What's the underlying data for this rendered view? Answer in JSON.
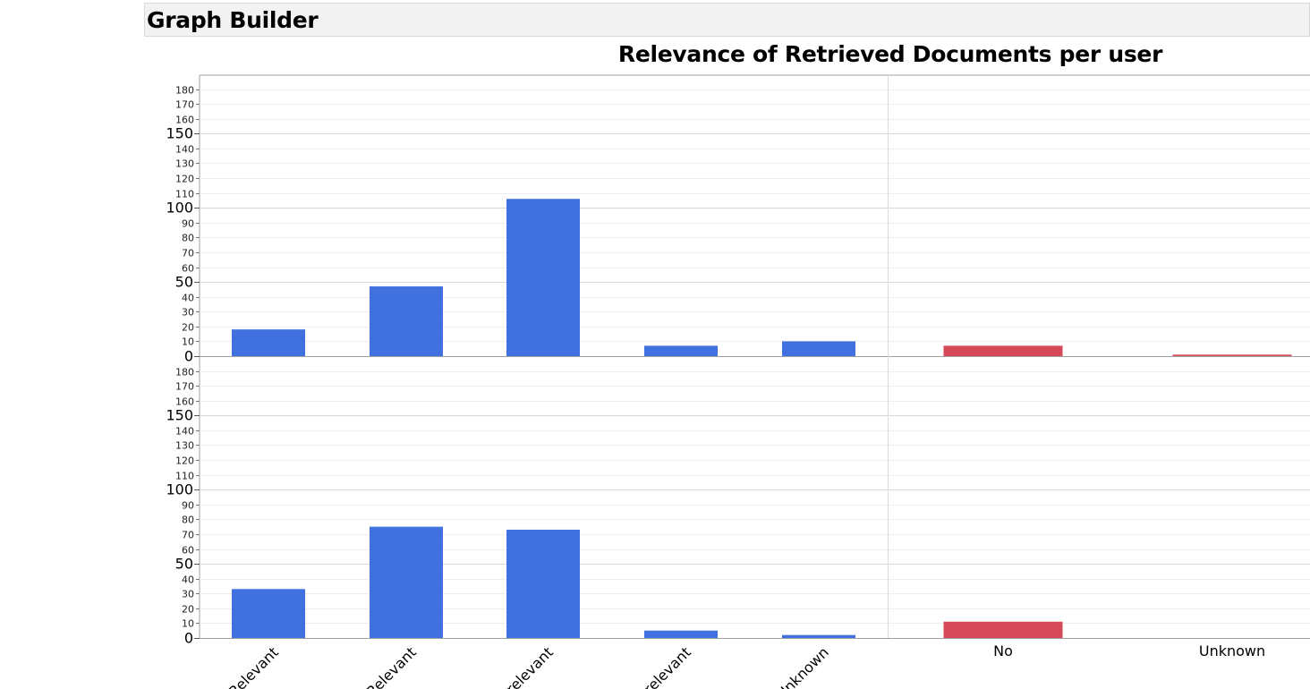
{
  "header": {
    "title": "Graph Builder"
  },
  "chart_data": {
    "type": "bar",
    "title": "Relevance of Retrieved Documents per user",
    "xlabel": "",
    "ylabel": "",
    "ylim": [
      0,
      188
    ],
    "y_ticks_minor": [
      10,
      20,
      30,
      40,
      60,
      70,
      80,
      90,
      110,
      120,
      130,
      140,
      160,
      170,
      180
    ],
    "y_ticks_major": [
      0,
      50,
      100,
      150
    ],
    "grid": true,
    "groups": [
      {
        "categories": [
          "Relevant",
          "Relevant",
          "relevant",
          "Irrelevant",
          "Unknown"
        ],
        "color": "#4171de"
      },
      {
        "categories": [
          "No",
          "Unknown"
        ],
        "color": "#d54857"
      }
    ],
    "panels": [
      {
        "values": [
          [
            18,
            47,
            106,
            7,
            10
          ],
          [
            7,
            1
          ]
        ]
      },
      {
        "values": [
          [
            33,
            75,
            73,
            5,
            2
          ],
          [
            11,
            0
          ]
        ]
      }
    ]
  }
}
